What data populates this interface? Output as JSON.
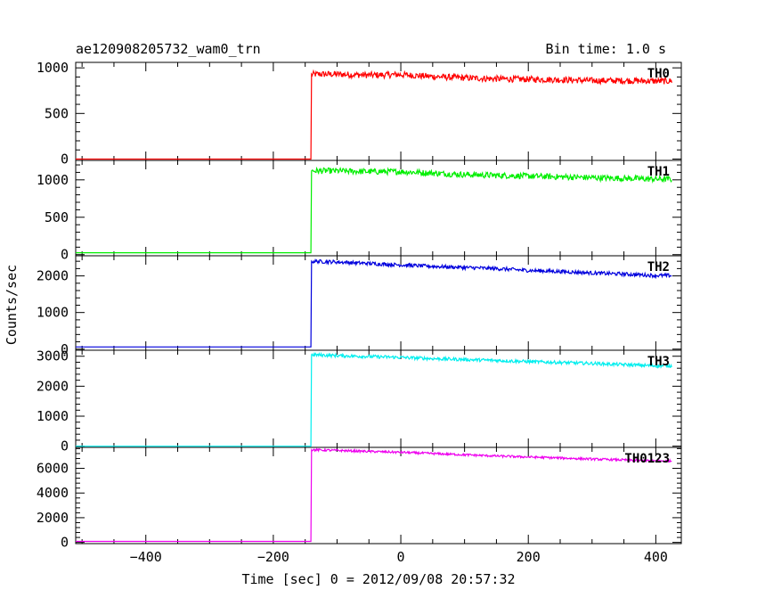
{
  "header": {
    "title": "ae120908205732_wam0_trn",
    "bin_time": "Bin time: 1.0 s"
  },
  "axes": {
    "xlabel": "Time [sec] 0 = 2012/09/08 20:57:32",
    "ylabel": "Counts/sec"
  },
  "chart_data": {
    "type": "line",
    "title": "ae120908205732_wam0_trn",
    "subtitle": "Bin time: 1.0 s",
    "xlabel": "Time [sec] 0 = 2012/09/08 20:57:32",
    "ylabel": "Counts/sec",
    "xlim": [
      -510,
      440
    ],
    "xticks": [
      -400,
      -200,
      0,
      200,
      400
    ],
    "xtick_labels": [
      "−400",
      "−200",
      "0",
      "200",
      "400"
    ],
    "step_time": -140,
    "data_end": 425,
    "panels": [
      {
        "name": "TH0",
        "color": "#ff0000",
        "ylim": [
          -15,
          1060
        ],
        "yticks": [
          0,
          500,
          1000
        ],
        "ytick_labels": [
          "0",
          "500",
          "1000"
        ],
        "series": [
          {
            "x": -510,
            "y": 0
          },
          {
            "x": -141,
            "y": 0
          },
          {
            "x": -140,
            "y": 930
          },
          {
            "x": -100,
            "y": 930
          },
          {
            "x": -50,
            "y": 920
          },
          {
            "x": 0,
            "y": 925
          },
          {
            "x": 50,
            "y": 905
          },
          {
            "x": 100,
            "y": 890
          },
          {
            "x": 150,
            "y": 880
          },
          {
            "x": 200,
            "y": 875
          },
          {
            "x": 250,
            "y": 870
          },
          {
            "x": 300,
            "y": 860
          },
          {
            "x": 350,
            "y": 860
          },
          {
            "x": 400,
            "y": 855
          },
          {
            "x": 425,
            "y": 855
          }
        ],
        "noise": 35
      },
      {
        "name": "TH1",
        "color": "#00ee00",
        "ylim": [
          -15,
          1260
        ],
        "yticks": [
          0,
          500,
          1000
        ],
        "ytick_labels": [
          "0",
          "500",
          "1000"
        ],
        "series": [
          {
            "x": -510,
            "y": 25
          },
          {
            "x": -141,
            "y": 25
          },
          {
            "x": -140,
            "y": 1120
          },
          {
            "x": -100,
            "y": 1120
          },
          {
            "x": -50,
            "y": 1110
          },
          {
            "x": 0,
            "y": 1110
          },
          {
            "x": 50,
            "y": 1090
          },
          {
            "x": 100,
            "y": 1070
          },
          {
            "x": 150,
            "y": 1060
          },
          {
            "x": 200,
            "y": 1050
          },
          {
            "x": 250,
            "y": 1040
          },
          {
            "x": 300,
            "y": 1030
          },
          {
            "x": 350,
            "y": 1020
          },
          {
            "x": 400,
            "y": 1010
          },
          {
            "x": 425,
            "y": 1010
          }
        ],
        "noise": 40
      },
      {
        "name": "TH2",
        "color": "#0000dd",
        "ylim": [
          -30,
          2550
        ],
        "yticks": [
          0,
          1000,
          2000
        ],
        "ytick_labels": [
          "0",
          "1000",
          "2000"
        ],
        "series": [
          {
            "x": -510,
            "y": 60
          },
          {
            "x": -141,
            "y": 60
          },
          {
            "x": -140,
            "y": 2400
          },
          {
            "x": -100,
            "y": 2380
          },
          {
            "x": -50,
            "y": 2340
          },
          {
            "x": 0,
            "y": 2300
          },
          {
            "x": 50,
            "y": 2260
          },
          {
            "x": 100,
            "y": 2230
          },
          {
            "x": 150,
            "y": 2200
          },
          {
            "x": 200,
            "y": 2150
          },
          {
            "x": 250,
            "y": 2120
          },
          {
            "x": 300,
            "y": 2080
          },
          {
            "x": 350,
            "y": 2050
          },
          {
            "x": 400,
            "y": 2010
          },
          {
            "x": 425,
            "y": 2010
          }
        ],
        "noise": 50
      },
      {
        "name": "TH3",
        "color": "#00eeee",
        "ylim": [
          -40,
          3200
        ],
        "yticks": [
          0,
          1000,
          2000,
          3000
        ],
        "ytick_labels": [
          "0",
          "1000",
          "2000",
          "3000"
        ],
        "series": [
          {
            "x": -510,
            "y": 0
          },
          {
            "x": -141,
            "y": 0
          },
          {
            "x": -140,
            "y": 3050
          },
          {
            "x": -100,
            "y": 3020
          },
          {
            "x": -50,
            "y": 2990
          },
          {
            "x": 0,
            "y": 2960
          },
          {
            "x": 50,
            "y": 2920
          },
          {
            "x": 100,
            "y": 2890
          },
          {
            "x": 150,
            "y": 2860
          },
          {
            "x": 200,
            "y": 2820
          },
          {
            "x": 250,
            "y": 2790
          },
          {
            "x": 300,
            "y": 2760
          },
          {
            "x": 350,
            "y": 2720
          },
          {
            "x": 400,
            "y": 2680
          },
          {
            "x": 425,
            "y": 2680
          }
        ],
        "noise": 55
      },
      {
        "name": "TH0123",
        "color": "#ee00ee",
        "ylim": [
          -100,
          7700
        ],
        "yticks": [
          0,
          2000,
          4000,
          6000
        ],
        "ytick_labels": [
          "0",
          "2000",
          "4000",
          "6000"
        ],
        "series": [
          {
            "x": -510,
            "y": 80
          },
          {
            "x": -141,
            "y": 80
          },
          {
            "x": -140,
            "y": 7500
          },
          {
            "x": -100,
            "y": 7450
          },
          {
            "x": -50,
            "y": 7370
          },
          {
            "x": 0,
            "y": 7300
          },
          {
            "x": 50,
            "y": 7200
          },
          {
            "x": 100,
            "y": 7100
          },
          {
            "x": 150,
            "y": 7000
          },
          {
            "x": 200,
            "y": 6920
          },
          {
            "x": 250,
            "y": 6840
          },
          {
            "x": 300,
            "y": 6750
          },
          {
            "x": 350,
            "y": 6680
          },
          {
            "x": 400,
            "y": 6600
          },
          {
            "x": 425,
            "y": 6600
          }
        ],
        "noise": 90
      }
    ]
  }
}
